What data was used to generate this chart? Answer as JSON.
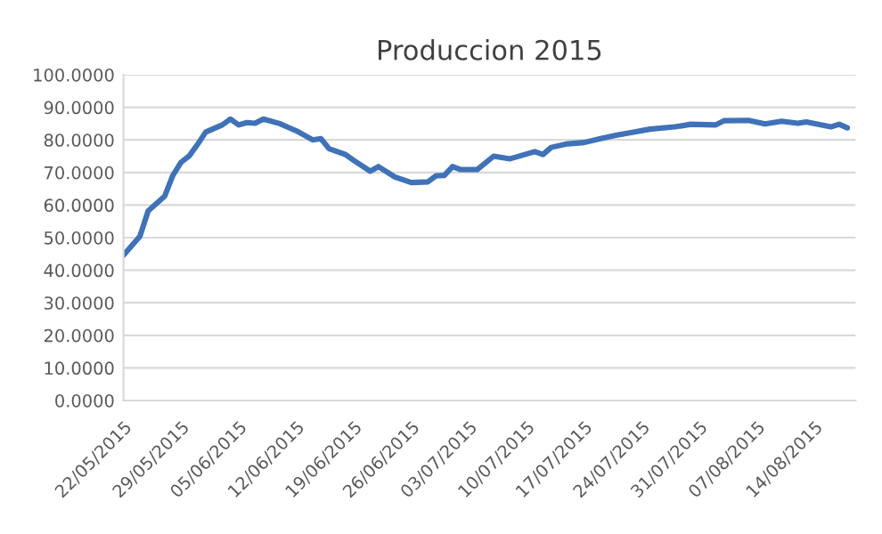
{
  "chart_data": {
    "type": "line",
    "title": "Produccion 2015",
    "x": [
      "2015-05-22",
      "2015-05-24",
      "2015-05-25",
      "2015-05-27",
      "2015-05-28",
      "2015-05-29",
      "2015-05-30",
      "2015-05-31",
      "2015-06-01",
      "2015-06-03",
      "2015-06-04",
      "2015-06-05",
      "2015-06-06",
      "2015-06-07",
      "2015-06-08",
      "2015-06-10",
      "2015-06-11",
      "2015-06-12",
      "2015-06-14",
      "2015-06-15",
      "2015-06-16",
      "2015-06-18",
      "2015-06-19",
      "2015-06-21",
      "2015-06-22",
      "2015-06-24",
      "2015-06-26",
      "2015-06-28",
      "2015-06-29",
      "2015-06-30",
      "2015-07-01",
      "2015-07-02",
      "2015-07-04",
      "2015-07-06",
      "2015-07-08",
      "2015-07-11",
      "2015-07-12",
      "2015-07-13",
      "2015-07-15",
      "2015-07-17",
      "2015-07-19",
      "2015-07-21",
      "2015-07-23",
      "2015-07-25",
      "2015-07-28",
      "2015-07-30",
      "2015-08-02",
      "2015-08-03",
      "2015-08-06",
      "2015-08-08",
      "2015-08-10",
      "2015-08-12",
      "2015-08-13",
      "2015-08-16",
      "2015-08-17",
      "2015-08-18"
    ],
    "series": [
      {
        "color": "#3f72b8",
        "values": [
          44.6,
          50.4,
          58.2,
          62.7,
          69.1,
          73.1,
          75.1,
          78.6,
          82.4,
          84.6,
          86.4,
          84.6,
          85.3,
          85.1,
          86.4,
          85.0,
          83.9,
          82.8,
          80.0,
          80.4,
          77.3,
          75.5,
          73.7,
          70.4,
          71.8,
          68.6,
          66.9,
          67.1,
          69.0,
          69.1,
          71.8,
          70.9,
          70.9,
          75.0,
          74.2,
          76.4,
          75.5,
          77.7,
          78.8,
          79.2,
          80.4,
          81.5,
          82.4,
          83.3,
          84.0,
          84.8,
          84.6,
          85.9,
          86.0,
          84.9,
          85.7,
          85.1,
          85.5,
          84.0,
          84.8,
          83.7
        ]
      }
    ],
    "xlim": [
      "2015-05-22",
      "2015-08-19"
    ],
    "xticks": [
      {
        "value": "2015-05-22",
        "label": "22/05/2015"
      },
      {
        "value": "2015-05-29",
        "label": "29/05/2015"
      },
      {
        "value": "2015-06-05",
        "label": "05/06/2015"
      },
      {
        "value": "2015-06-12",
        "label": "12/06/2015"
      },
      {
        "value": "2015-06-19",
        "label": "19/06/2015"
      },
      {
        "value": "2015-06-26",
        "label": "26/06/2015"
      },
      {
        "value": "2015-07-03",
        "label": "03/07/2015"
      },
      {
        "value": "2015-07-10",
        "label": "10/07/2015"
      },
      {
        "value": "2015-07-17",
        "label": "17/07/2015"
      },
      {
        "value": "2015-07-24",
        "label": "24/07/2015"
      },
      {
        "value": "2015-07-31",
        "label": "31/07/2015"
      },
      {
        "value": "2015-08-07",
        "label": "07/08/2015"
      },
      {
        "value": "2015-08-14",
        "label": "14/08/2015"
      }
    ],
    "ylim": [
      0,
      100
    ],
    "yticks": [
      {
        "value": 0,
        "label": "0.0000"
      },
      {
        "value": 10,
        "label": "10.0000"
      },
      {
        "value": 20,
        "label": "20.0000"
      },
      {
        "value": 30,
        "label": "30.0000"
      },
      {
        "value": 40,
        "label": "40.0000"
      },
      {
        "value": 50,
        "label": "50.0000"
      },
      {
        "value": 60,
        "label": "60.0000"
      },
      {
        "value": 70,
        "label": "70.0000"
      },
      {
        "value": 80,
        "label": "80.0000"
      },
      {
        "value": 90,
        "label": "90.0000"
      },
      {
        "value": 100,
        "label": "100.0000"
      }
    ],
    "grid": "y",
    "legend": false,
    "marker": "none",
    "line_style": "solid"
  }
}
